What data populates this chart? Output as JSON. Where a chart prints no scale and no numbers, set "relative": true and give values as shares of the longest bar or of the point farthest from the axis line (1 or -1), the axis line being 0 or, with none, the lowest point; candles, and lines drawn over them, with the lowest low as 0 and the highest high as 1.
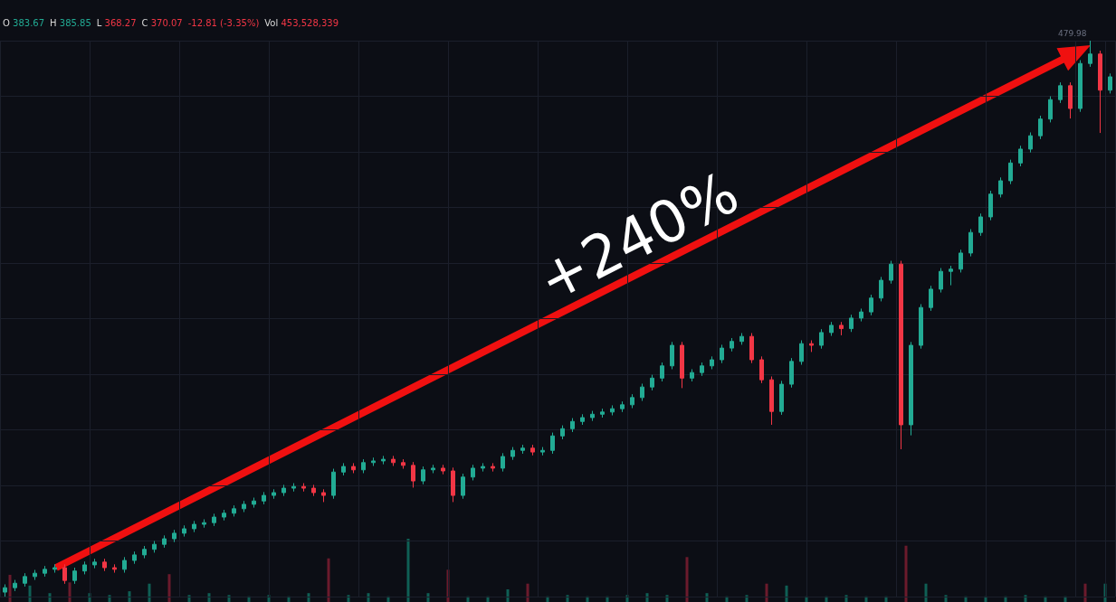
{
  "chart_data": [
    {
      "type": "candlestick",
      "relative": true,
      "tick_labels": false,
      "grid": true,
      "annotations": [
        "O 383.67",
        "H 385.85",
        "L 368.27",
        "C 370.07",
        "-12.81 (-3.35%)",
        "Vol 453,528,339",
        "+240%",
        "479.98"
      ],
      "categories": [
        null,
        null,
        null,
        null,
        null,
        null,
        null,
        null,
        null,
        null,
        null,
        null,
        null,
        null,
        null,
        null,
        null,
        null,
        null,
        null,
        null,
        null,
        null,
        null,
        null,
        null,
        null,
        null,
        null,
        null,
        null,
        null,
        null,
        null,
        null,
        null,
        null,
        null,
        null,
        null,
        null,
        null,
        null,
        null,
        null,
        null,
        null,
        null,
        null,
        null,
        null,
        null,
        null,
        null,
        null,
        null,
        null,
        null,
        null,
        null,
        null,
        null,
        null,
        null,
        null,
        null,
        null,
        null,
        null,
        null,
        null,
        null,
        null,
        null,
        null,
        null,
        null,
        null,
        null,
        null,
        null,
        null,
        null,
        null,
        null,
        null,
        null,
        null,
        null,
        null,
        null,
        null,
        null,
        null,
        null,
        null,
        null,
        null,
        null,
        null,
        null,
        null,
        null,
        null,
        null,
        null,
        null,
        null,
        null,
        null,
        null,
        null
      ],
      "colors": [
        "#22ab94",
        "#22ab94",
        "#22ab94",
        "#22ab94",
        "#22ab94",
        "#22ab94",
        "#f23645",
        "#22ab94",
        "#22ab94",
        "#22ab94",
        "#f23645",
        "#f23645",
        "#22ab94",
        "#22ab94",
        "#22ab94",
        "#22ab94",
        "#22ab94",
        "#22ab94",
        "#22ab94",
        "#22ab94",
        "#22ab94",
        "#22ab94",
        "#22ab94",
        "#22ab94",
        "#22ab94",
        "#22ab94",
        "#22ab94",
        "#22ab94",
        "#22ab94",
        "#22ab94",
        "#f23645",
        "#f23645",
        "#f23645",
        "#22ab94",
        "#22ab94",
        "#f23645",
        "#22ab94",
        "#22ab94",
        "#22ab94",
        "#f23645",
        "#f23645",
        "#f23645",
        "#22ab94",
        "#22ab94",
        "#f23645",
        "#f23645",
        "#22ab94",
        "#22ab94",
        "#22ab94",
        "#f23645",
        "#22ab94",
        "#22ab94",
        "#22ab94",
        "#f23645",
        "#22ab94",
        "#22ab94",
        "#22ab94",
        "#22ab94",
        "#22ab94",
        "#22ab94",
        "#22ab94",
        "#22ab94",
        "#22ab94",
        "#22ab94",
        "#22ab94",
        "#22ab94",
        "#22ab94",
        "#22ab94",
        "#f23645",
        "#22ab94",
        "#22ab94",
        "#22ab94",
        "#22ab94",
        "#22ab94",
        "#22ab94",
        "#f23645",
        "#f23645",
        "#f23645",
        "#22ab94",
        "#22ab94",
        "#22ab94",
        "#f23645",
        "#22ab94",
        "#22ab94",
        "#f23645",
        "#22ab94",
        "#22ab94",
        "#22ab94",
        "#22ab94",
        "#22ab94",
        "#f23645",
        "#22ab94",
        "#22ab94",
        "#22ab94",
        "#22ab94",
        "#22ab94",
        "#22ab94",
        "#22ab94",
        "#22ab94",
        "#22ab94",
        "#22ab94",
        "#22ab94",
        "#22ab94",
        "#22ab94",
        "#22ab94",
        "#22ab94",
        "#22ab94",
        "#f23645",
        "#22ab94",
        "#22ab94",
        "#f23645",
        "#22ab94"
      ],
      "ohlc": [
        [
          0.008,
          0.022,
          0,
          0.016
        ],
        [
          0.016,
          0.03,
          0.01,
          0.024
        ],
        [
          0.024,
          0.042,
          0.018,
          0.036
        ],
        [
          0.036,
          0.048,
          0.03,
          0.042
        ],
        [
          0.042,
          0.055,
          0.036,
          0.049
        ],
        [
          0.049,
          0.058,
          0.043,
          0.052
        ],
        [
          0.052,
          0.058,
          0.023,
          0.029
        ],
        [
          0.029,
          0.052,
          0.023,
          0.046
        ],
        [
          0.046,
          0.063,
          0.04,
          0.057
        ],
        [
          0.057,
          0.068,
          0.051,
          0.062
        ],
        [
          0.062,
          0.068,
          0.046,
          0.052
        ],
        [
          0.052,
          0.058,
          0.043,
          0.049
        ],
        [
          0.049,
          0.071,
          0.043,
          0.065
        ],
        [
          0.065,
          0.081,
          0.059,
          0.075
        ],
        [
          0.075,
          0.091,
          0.069,
          0.085
        ],
        [
          0.085,
          0.1,
          0.079,
          0.094
        ],
        [
          0.094,
          0.11,
          0.088,
          0.104
        ],
        [
          0.104,
          0.12,
          0.098,
          0.114
        ],
        [
          0.114,
          0.128,
          0.108,
          0.122
        ],
        [
          0.122,
          0.136,
          0.116,
          0.13
        ],
        [
          0.13,
          0.139,
          0.124,
          0.133
        ],
        [
          0.133,
          0.149,
          0.127,
          0.143
        ],
        [
          0.143,
          0.156,
          0.137,
          0.15
        ],
        [
          0.15,
          0.164,
          0.144,
          0.158
        ],
        [
          0.158,
          0.172,
          0.152,
          0.166
        ],
        [
          0.166,
          0.178,
          0.16,
          0.172
        ],
        [
          0.172,
          0.188,
          0.166,
          0.182
        ],
        [
          0.182,
          0.193,
          0.176,
          0.187
        ],
        [
          0.187,
          0.201,
          0.181,
          0.195
        ],
        [
          0.195,
          0.204,
          0.189,
          0.198
        ],
        [
          0.198,
          0.204,
          0.189,
          0.195
        ],
        [
          0.195,
          0.201,
          0.181,
          0.187
        ],
        [
          0.187,
          0.193,
          0.17,
          0.182
        ],
        [
          0.182,
          0.23,
          0.176,
          0.224
        ],
        [
          0.224,
          0.24,
          0.218,
          0.234
        ],
        [
          0.234,
          0.24,
          0.222,
          0.228
        ],
        [
          0.228,
          0.247,
          0.222,
          0.241
        ],
        [
          0.241,
          0.25,
          0.235,
          0.244
        ],
        [
          0.244,
          0.253,
          0.238,
          0.247
        ],
        [
          0.247,
          0.253,
          0.235,
          0.241
        ],
        [
          0.241,
          0.247,
          0.23,
          0.236
        ],
        [
          0.236,
          0.242,
          0.196,
          0.208
        ],
        [
          0.208,
          0.234,
          0.202,
          0.228
        ],
        [
          0.228,
          0.237,
          0.222,
          0.231
        ],
        [
          0.231,
          0.237,
          0.22,
          0.226
        ],
        [
          0.226,
          0.232,
          0.17,
          0.182
        ],
        [
          0.182,
          0.221,
          0.176,
          0.215
        ],
        [
          0.215,
          0.237,
          0.209,
          0.231
        ],
        [
          0.231,
          0.24,
          0.225,
          0.234
        ],
        [
          0.234,
          0.24,
          0.225,
          0.231
        ],
        [
          0.231,
          0.258,
          0.225,
          0.252
        ],
        [
          0.252,
          0.269,
          0.246,
          0.263
        ],
        [
          0.263,
          0.273,
          0.257,
          0.267
        ],
        [
          0.267,
          0.273,
          0.254,
          0.26
        ],
        [
          0.26,
          0.269,
          0.254,
          0.263
        ],
        [
          0.263,
          0.295,
          0.257,
          0.289
        ],
        [
          0.289,
          0.308,
          0.283,
          0.302
        ],
        [
          0.302,
          0.321,
          0.296,
          0.315
        ],
        [
          0.315,
          0.328,
          0.309,
          0.322
        ],
        [
          0.322,
          0.334,
          0.316,
          0.328
        ],
        [
          0.328,
          0.338,
          0.322,
          0.332
        ],
        [
          0.332,
          0.344,
          0.326,
          0.338
        ],
        [
          0.338,
          0.351,
          0.332,
          0.345
        ],
        [
          0.345,
          0.364,
          0.339,
          0.358
        ],
        [
          0.358,
          0.383,
          0.352,
          0.377
        ],
        [
          0.377,
          0.399,
          0.371,
          0.393
        ],
        [
          0.393,
          0.421,
          0.387,
          0.415
        ],
        [
          0.415,
          0.458,
          0.409,
          0.452
        ],
        [
          0.452,
          0.458,
          0.375,
          0.393
        ],
        [
          0.393,
          0.409,
          0.387,
          0.403
        ],
        [
          0.403,
          0.421,
          0.397,
          0.415
        ],
        [
          0.415,
          0.432,
          0.409,
          0.426
        ],
        [
          0.426,
          0.453,
          0.42,
          0.447
        ],
        [
          0.447,
          0.465,
          0.441,
          0.459
        ],
        [
          0.459,
          0.474,
          0.453,
          0.468
        ],
        [
          0.468,
          0.474,
          0.42,
          0.426
        ],
        [
          0.426,
          0.432,
          0.384,
          0.39
        ],
        [
          0.39,
          0.396,
          0.309,
          0.333
        ],
        [
          0.333,
          0.388,
          0.327,
          0.382
        ],
        [
          0.382,
          0.429,
          0.376,
          0.423
        ],
        [
          0.423,
          0.461,
          0.417,
          0.455
        ],
        [
          0.455,
          0.461,
          0.44,
          0.452
        ],
        [
          0.452,
          0.481,
          0.446,
          0.475
        ],
        [
          0.475,
          0.494,
          0.469,
          0.488
        ],
        [
          0.488,
          0.494,
          0.47,
          0.482
        ],
        [
          0.482,
          0.507,
          0.476,
          0.501
        ],
        [
          0.501,
          0.518,
          0.495,
          0.512
        ],
        [
          0.512,
          0.543,
          0.506,
          0.537
        ],
        [
          0.537,
          0.575,
          0.531,
          0.569
        ],
        [
          0.569,
          0.604,
          0.563,
          0.598
        ],
        [
          0.598,
          0.604,
          0.265,
          0.309
        ],
        [
          0.309,
          0.458,
          0.29,
          0.452
        ],
        [
          0.452,
          0.526,
          0.446,
          0.52
        ],
        [
          0.52,
          0.559,
          0.514,
          0.553
        ],
        [
          0.553,
          0.591,
          0.547,
          0.585
        ],
        [
          0.585,
          0.595,
          0.56,
          0.589
        ],
        [
          0.589,
          0.624,
          0.583,
          0.618
        ],
        [
          0.618,
          0.661,
          0.612,
          0.655
        ],
        [
          0.655,
          0.689,
          0.649,
          0.683
        ],
        [
          0.683,
          0.73,
          0.677,
          0.724
        ],
        [
          0.724,
          0.754,
          0.718,
          0.748
        ],
        [
          0.748,
          0.786,
          0.742,
          0.78
        ],
        [
          0.78,
          0.811,
          0.774,
          0.805
        ],
        [
          0.805,
          0.835,
          0.799,
          0.829
        ],
        [
          0.829,
          0.865,
          0.823,
          0.859
        ],
        [
          0.859,
          0.9,
          0.853,
          0.894
        ],
        [
          0.894,
          0.925,
          0.888,
          0.919
        ],
        [
          0.919,
          0.925,
          0.86,
          0.878
        ],
        [
          0.878,
          0.965,
          0.872,
          0.959
        ],
        [
          0.959,
          1,
          0.953,
          0.976
        ],
        [
          0.976,
          0.982,
          0.834,
          0.911
        ],
        [
          0.911,
          0.941,
          0.905,
          0.935
        ]
      ]
    },
    {
      "type": "bar",
      "relative": true,
      "tick_labels": false,
      "categories": [
        null,
        null,
        null,
        null,
        null,
        null,
        null,
        null,
        null,
        null,
        null,
        null,
        null,
        null,
        null,
        null,
        null,
        null,
        null,
        null,
        null,
        null,
        null,
        null,
        null,
        null,
        null,
        null,
        null,
        null,
        null,
        null,
        null,
        null,
        null,
        null,
        null,
        null,
        null,
        null,
        null,
        null,
        null,
        null,
        null,
        null,
        null,
        null,
        null,
        null,
        null,
        null,
        null,
        null,
        null,
        null
      ],
      "values": [
        0.43,
        0.26,
        0.14,
        0.31,
        0.14,
        0.11,
        0.17,
        0.29,
        0.44,
        0.11,
        0.14,
        0.11,
        0.09,
        0.11,
        0.09,
        0.14,
        0.69,
        0.11,
        0.14,
        0.09,
        1,
        0.14,
        0.51,
        0.09,
        0.09,
        0.2,
        0.29,
        0.09,
        0.11,
        0.09,
        0.09,
        0.11,
        0.14,
        0.11,
        0.71,
        0.14,
        0.09,
        0.11,
        0.29,
        0.26,
        0.09,
        0.09,
        0.11,
        0.09,
        0.09,
        0.89,
        0.29,
        0.11,
        0.09,
        0.09,
        0.09,
        0.11,
        0.09,
        0.09,
        0.29,
        0.29
      ],
      "colors": [
        "#6b1a2c",
        "#0f5f55",
        "#0f5f55",
        "#6b1a2c",
        "#0f5f55",
        "#0f5f55",
        "#0f5f55",
        "#0f5f55",
        "#6b1a2c",
        "#0f5f55",
        "#0f5f55",
        "#0f5f55",
        "#0f5f55",
        "#0f5f55",
        "#0f5f55",
        "#0f5f55",
        "#6b1a2c",
        "#0f5f55",
        "#0f5f55",
        "#0f5f55",
        "#0f5f55",
        "#0f5f55",
        "#6b1a2c",
        "#0f5f55",
        "#0f5f55",
        "#0f5f55",
        "#6b1a2c",
        "#0f5f55",
        "#0f5f55",
        "#0f5f55",
        "#0f5f55",
        "#0f5f55",
        "#0f5f55",
        "#0f5f55",
        "#6b1a2c",
        "#0f5f55",
        "#0f5f55",
        "#0f5f55",
        "#6b1a2c",
        "#0f5f55",
        "#0f5f55",
        "#0f5f55",
        "#0f5f55",
        "#0f5f55",
        "#0f5f55",
        "#6b1a2c",
        "#0f5f55",
        "#0f5f55",
        "#0f5f55",
        "#0f5f55",
        "#0f5f55",
        "#0f5f55",
        "#0f5f55",
        "#0f5f55",
        "#6b1a2c",
        "#0f5f55"
      ]
    }
  ]
}
